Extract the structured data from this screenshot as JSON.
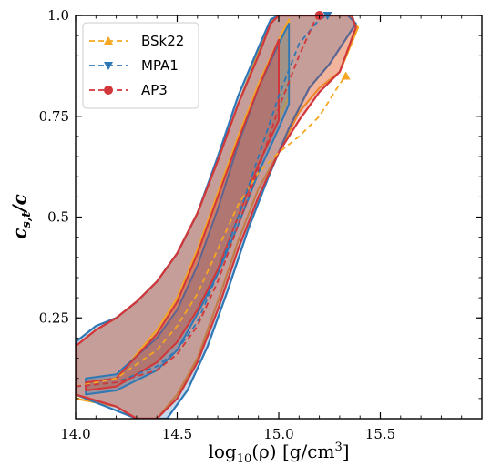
{
  "chart_data": {
    "type": "area",
    "xlabel_main": "log",
    "xlabel_sub": "10",
    "xlabel_rest": "(ρ) [g/cm",
    "xlabel_sup": "3",
    "xlabel_close": "]",
    "ylabel_main": "c",
    "ylabel_sub": "s,t",
    "ylabel_rest": "/c",
    "xlim": [
      14.0,
      16.0
    ],
    "ylim": [
      0.0,
      1.0
    ],
    "x_ticks": [
      14.0,
      14.5,
      15.0,
      15.5
    ],
    "x_tick_labels": [
      "14.0",
      "14.5",
      "15.0",
      "15.5"
    ],
    "y_ticks": [
      0.25,
      0.5,
      0.75,
      1.0
    ],
    "y_tick_labels": [
      "0.25",
      "0.5",
      "0.75",
      "1.0"
    ],
    "legend_position": "upper-left",
    "series": [
      {
        "name": "BSk22",
        "color": "#f5a623",
        "marker": "triangle-up",
        "curve": [
          [
            14.0,
            0.08
          ],
          [
            14.2,
            0.1
          ],
          [
            14.4,
            0.17
          ],
          [
            14.5,
            0.23
          ],
          [
            14.6,
            0.31
          ],
          [
            14.7,
            0.42
          ],
          [
            14.8,
            0.53
          ],
          [
            14.9,
            0.61
          ],
          [
            15.0,
            0.66
          ],
          [
            15.1,
            0.7
          ],
          [
            15.2,
            0.75
          ],
          [
            15.3,
            0.83
          ],
          [
            15.33,
            0.85
          ]
        ],
        "outer_band_upper": [
          [
            14.0,
            0.18
          ],
          [
            14.1,
            0.22
          ],
          [
            14.2,
            0.25
          ],
          [
            14.3,
            0.29
          ],
          [
            14.4,
            0.34
          ],
          [
            14.5,
            0.41
          ],
          [
            14.6,
            0.51
          ],
          [
            14.7,
            0.64
          ],
          [
            14.8,
            0.78
          ],
          [
            14.9,
            0.91
          ],
          [
            14.97,
            0.99
          ],
          [
            15.0,
            1.0
          ],
          [
            15.35,
            1.0
          ],
          [
            15.39,
            0.97
          ]
        ],
        "outer_band_lower": [
          [
            14.0,
            0.05
          ],
          [
            14.2,
            0.03
          ],
          [
            14.3,
            0.0
          ],
          [
            14.4,
            0.0
          ],
          [
            14.5,
            0.06
          ],
          [
            14.6,
            0.15
          ],
          [
            14.7,
            0.29
          ],
          [
            14.8,
            0.44
          ],
          [
            14.9,
            0.57
          ],
          [
            15.0,
            0.66
          ],
          [
            15.1,
            0.76
          ],
          [
            15.2,
            0.82
          ],
          [
            15.3,
            0.86
          ],
          [
            15.39,
            0.97
          ]
        ],
        "inner_band_upper": [
          [
            14.05,
            0.09
          ],
          [
            14.2,
            0.1
          ],
          [
            14.4,
            0.22
          ],
          [
            14.5,
            0.3
          ],
          [
            14.6,
            0.42
          ],
          [
            14.7,
            0.56
          ],
          [
            14.8,
            0.7
          ],
          [
            14.9,
            0.83
          ],
          [
            15.0,
            0.94
          ],
          [
            15.05,
            0.99
          ]
        ],
        "inner_band_lower": [
          [
            14.05,
            0.07
          ],
          [
            14.2,
            0.08
          ],
          [
            14.4,
            0.14
          ],
          [
            14.5,
            0.19
          ],
          [
            14.6,
            0.27
          ],
          [
            14.7,
            0.37
          ],
          [
            14.8,
            0.5
          ],
          [
            14.9,
            0.63
          ],
          [
            15.0,
            0.74
          ],
          [
            15.05,
            0.8
          ]
        ]
      },
      {
        "name": "MPA1",
        "color": "#2f78b5",
        "marker": "triangle-down",
        "curve": [
          [
            14.0,
            0.08
          ],
          [
            14.2,
            0.09
          ],
          [
            14.4,
            0.13
          ],
          [
            14.5,
            0.17
          ],
          [
            14.6,
            0.24
          ],
          [
            14.7,
            0.36
          ],
          [
            14.8,
            0.5
          ],
          [
            14.9,
            0.65
          ],
          [
            15.0,
            0.8
          ],
          [
            15.1,
            0.93
          ],
          [
            15.2,
            0.99
          ],
          [
            15.24,
            1.0
          ]
        ],
        "outer_band_upper": [
          [
            14.0,
            0.19
          ],
          [
            14.1,
            0.23
          ],
          [
            14.2,
            0.25
          ],
          [
            14.3,
            0.29
          ],
          [
            14.4,
            0.34
          ],
          [
            14.5,
            0.41
          ],
          [
            14.6,
            0.51
          ],
          [
            14.7,
            0.65
          ],
          [
            14.8,
            0.8
          ],
          [
            14.9,
            0.92
          ],
          [
            14.96,
            0.99
          ],
          [
            15.0,
            1.0
          ],
          [
            15.34,
            1.0
          ],
          [
            15.38,
            0.98
          ]
        ],
        "outer_band_lower": [
          [
            14.0,
            0.06
          ],
          [
            14.2,
            0.02
          ],
          [
            14.3,
            0.0
          ],
          [
            14.45,
            0.0
          ],
          [
            14.55,
            0.07
          ],
          [
            14.65,
            0.18
          ],
          [
            14.75,
            0.32
          ],
          [
            14.85,
            0.47
          ],
          [
            14.95,
            0.6
          ],
          [
            15.05,
            0.72
          ],
          [
            15.15,
            0.82
          ],
          [
            15.25,
            0.88
          ],
          [
            15.38,
            0.98
          ]
        ],
        "inner_band_upper": [
          [
            14.05,
            0.1
          ],
          [
            14.2,
            0.11
          ],
          [
            14.4,
            0.2
          ],
          [
            14.5,
            0.27
          ],
          [
            14.6,
            0.38
          ],
          [
            14.7,
            0.52
          ],
          [
            14.8,
            0.68
          ],
          [
            14.9,
            0.82
          ],
          [
            15.0,
            0.93
          ],
          [
            15.05,
            0.98
          ]
        ],
        "inner_band_lower": [
          [
            14.05,
            0.06
          ],
          [
            14.2,
            0.07
          ],
          [
            14.4,
            0.12
          ],
          [
            14.5,
            0.17
          ],
          [
            14.6,
            0.26
          ],
          [
            14.7,
            0.36
          ],
          [
            14.8,
            0.48
          ],
          [
            14.9,
            0.61
          ],
          [
            15.0,
            0.72
          ],
          [
            15.05,
            0.78
          ]
        ]
      },
      {
        "name": "AP3",
        "color": "#d1363a",
        "marker": "circle",
        "curve": [
          [
            14.0,
            0.08
          ],
          [
            14.2,
            0.09
          ],
          [
            14.4,
            0.12
          ],
          [
            14.5,
            0.16
          ],
          [
            14.6,
            0.23
          ],
          [
            14.7,
            0.34
          ],
          [
            14.8,
            0.48
          ],
          [
            14.9,
            0.62
          ],
          [
            15.0,
            0.77
          ],
          [
            15.1,
            0.9
          ],
          [
            15.18,
            0.99
          ],
          [
            15.2,
            1.0
          ]
        ],
        "outer_band_upper": [
          [
            14.0,
            0.18
          ],
          [
            14.1,
            0.22
          ],
          [
            14.2,
            0.25
          ],
          [
            14.3,
            0.29
          ],
          [
            14.4,
            0.34
          ],
          [
            14.5,
            0.41
          ],
          [
            14.6,
            0.51
          ],
          [
            14.7,
            0.64
          ],
          [
            14.8,
            0.78
          ],
          [
            14.9,
            0.9
          ],
          [
            14.96,
            0.98
          ],
          [
            15.0,
            1.0
          ],
          [
            15.36,
            1.0
          ],
          [
            15.38,
            0.97
          ]
        ],
        "outer_band_lower": [
          [
            14.0,
            0.06
          ],
          [
            14.2,
            0.03
          ],
          [
            14.3,
            0.0
          ],
          [
            14.4,
            0.0
          ],
          [
            14.5,
            0.05
          ],
          [
            14.6,
            0.14
          ],
          [
            14.7,
            0.27
          ],
          [
            14.8,
            0.42
          ],
          [
            14.9,
            0.55
          ],
          [
            15.0,
            0.66
          ],
          [
            15.1,
            0.74
          ],
          [
            15.2,
            0.81
          ],
          [
            15.3,
            0.86
          ],
          [
            15.38,
            0.97
          ]
        ],
        "inner_band_upper": [
          [
            14.05,
            0.09
          ],
          [
            14.2,
            0.1
          ],
          [
            14.4,
            0.21
          ],
          [
            14.5,
            0.29
          ],
          [
            14.6,
            0.41
          ],
          [
            14.7,
            0.55
          ],
          [
            14.8,
            0.69
          ],
          [
            14.9,
            0.82
          ],
          [
            15.0,
            0.94
          ]
        ],
        "inner_band_lower": [
          [
            14.05,
            0.07
          ],
          [
            14.2,
            0.08
          ],
          [
            14.4,
            0.14
          ],
          [
            14.5,
            0.19
          ],
          [
            14.6,
            0.27
          ],
          [
            14.7,
            0.37
          ],
          [
            14.8,
            0.5
          ],
          [
            14.9,
            0.63
          ],
          [
            15.0,
            0.74
          ]
        ]
      }
    ]
  }
}
